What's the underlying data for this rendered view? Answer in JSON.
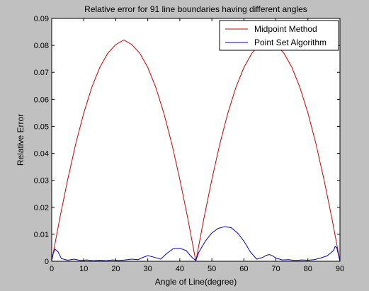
{
  "chart_data": {
    "type": "line",
    "title": "Relative error for 91 line boundaries having different angles",
    "xlabel": "Angle of Line(degree)",
    "ylabel": "Relative Error",
    "xlim": [
      0,
      90
    ],
    "ylim": [
      0,
      0.09
    ],
    "x_ticks": [
      0,
      10,
      20,
      30,
      40,
      50,
      60,
      70,
      80,
      90
    ],
    "y_ticks": [
      0,
      0.01,
      0.02,
      0.03,
      0.04,
      0.05,
      0.06,
      0.07,
      0.08,
      0.09
    ],
    "x_tick_labels": [
      "0",
      "10",
      "20",
      "30",
      "40",
      "50",
      "60",
      "70",
      "80",
      "90"
    ],
    "y_tick_labels": [
      "0",
      "0.01",
      "0.02",
      "0.03",
      "0.04",
      "0.05",
      "0.06",
      "0.07",
      "0.08",
      "0.09"
    ],
    "grid": false,
    "legend_position": "top-right",
    "series": [
      {
        "name": "Midpoint Method",
        "color": "#cc0000",
        "x": [
          0,
          2.5,
          5,
          7.5,
          10,
          12.5,
          15,
          17.5,
          20,
          22.5,
          25,
          27.5,
          30,
          32.5,
          35,
          37.5,
          40,
          42.5,
          45,
          47.5,
          50,
          52.5,
          55,
          57.5,
          60,
          62.5,
          65,
          67.5,
          70,
          72.5,
          75,
          77.5,
          80,
          82.5,
          85,
          87.5,
          90
        ],
        "values": [
          0,
          0.0158,
          0.0303,
          0.0435,
          0.0549,
          0.0644,
          0.0718,
          0.0771,
          0.0803,
          0.082,
          0.0803,
          0.0771,
          0.0718,
          0.0644,
          0.0549,
          0.0435,
          0.0303,
          0.0158,
          0,
          0.0158,
          0.0303,
          0.0435,
          0.0549,
          0.0644,
          0.0718,
          0.0771,
          0.0803,
          0.082,
          0.0803,
          0.0771,
          0.0718,
          0.0644,
          0.0549,
          0.0435,
          0.0303,
          0.0158,
          0
        ]
      },
      {
        "name": "Point Set Algorithm",
        "color": "#0000cc",
        "x": [
          0,
          0.5,
          1,
          2,
          3,
          5,
          7,
          9,
          11,
          13,
          15,
          17,
          19,
          21,
          23,
          25,
          27,
          28,
          30,
          32,
          34,
          36,
          38,
          40,
          42,
          43,
          44,
          45,
          46,
          48,
          50,
          52,
          54,
          56,
          58,
          60,
          62,
          64,
          66,
          67,
          68,
          69,
          70,
          72,
          74,
          76,
          78,
          80,
          82,
          84,
          86,
          87,
          88,
          88.5,
          89,
          89.5,
          90
        ],
        "values": [
          0.0005,
          0.003,
          0.0045,
          0.0035,
          0.001,
          0.0004,
          0.0008,
          0.0003,
          0.0005,
          0.0002,
          0.0004,
          0.0002,
          0.0005,
          0.0003,
          0.0005,
          0.0008,
          0.0006,
          0.0012,
          0.0021,
          0.0015,
          0.0008,
          0.003,
          0.0047,
          0.0048,
          0.004,
          0.0025,
          0.0012,
          0.0003,
          0.0035,
          0.0075,
          0.0105,
          0.0122,
          0.0128,
          0.0125,
          0.0105,
          0.0075,
          0.0035,
          0.0008,
          0.0015,
          0.0022,
          0.0025,
          0.002,
          0.0012,
          0.0005,
          0.0006,
          0.0003,
          0.0005,
          0.0004,
          0.0006,
          0.0012,
          0.002,
          0.003,
          0.004,
          0.0055,
          0.005,
          0.0025,
          0.0002
        ]
      }
    ]
  }
}
